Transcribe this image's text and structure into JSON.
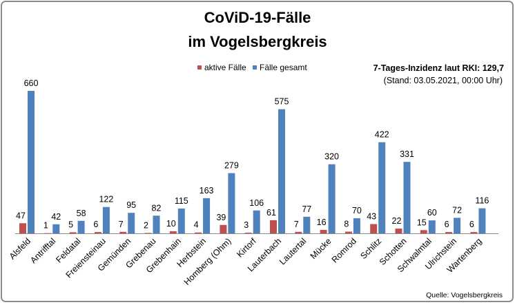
{
  "chart_data": {
    "type": "bar",
    "title_line1": "CoViD-19-Fälle",
    "title_line2": "im Vogelsbergkreis",
    "annotation_line1": "7-Tages-Inzidenz laut RKI: 129,7",
    "annotation_line2": "(Stand: 03.05.2021, 00:00 Uhr)",
    "source": "Quelle: Vogelsbergkreis",
    "legend_position": "top-center",
    "grid": false,
    "ylim": [
      0,
      700
    ],
    "categories": [
      "Alsfeld",
      "Antrifftal",
      "Feldatal",
      "Freiensteinau",
      "Gemünden",
      "Grebenau",
      "Grebenhain",
      "Herbstein",
      "Homberg (Ohm)",
      "Kirtorf",
      "Lauterbach",
      "Lautertal",
      "Mücke",
      "Romrod",
      "Schlitz",
      "Schotten",
      "Schwalmtal",
      "Ulrichstein",
      "Wartenberg"
    ],
    "series": [
      {
        "name": "aktive Fälle",
        "color": "#c0504d",
        "values": [
          47,
          1,
          5,
          6,
          7,
          2,
          10,
          4,
          39,
          3,
          61,
          7,
          16,
          8,
          43,
          22,
          15,
          6,
          6
        ]
      },
      {
        "name": "Fälle gesamt",
        "color": "#4f81bd",
        "values": [
          660,
          42,
          58,
          122,
          95,
          82,
          115,
          163,
          279,
          106,
          575,
          77,
          320,
          70,
          422,
          331,
          60,
          72,
          116
        ]
      }
    ]
  }
}
